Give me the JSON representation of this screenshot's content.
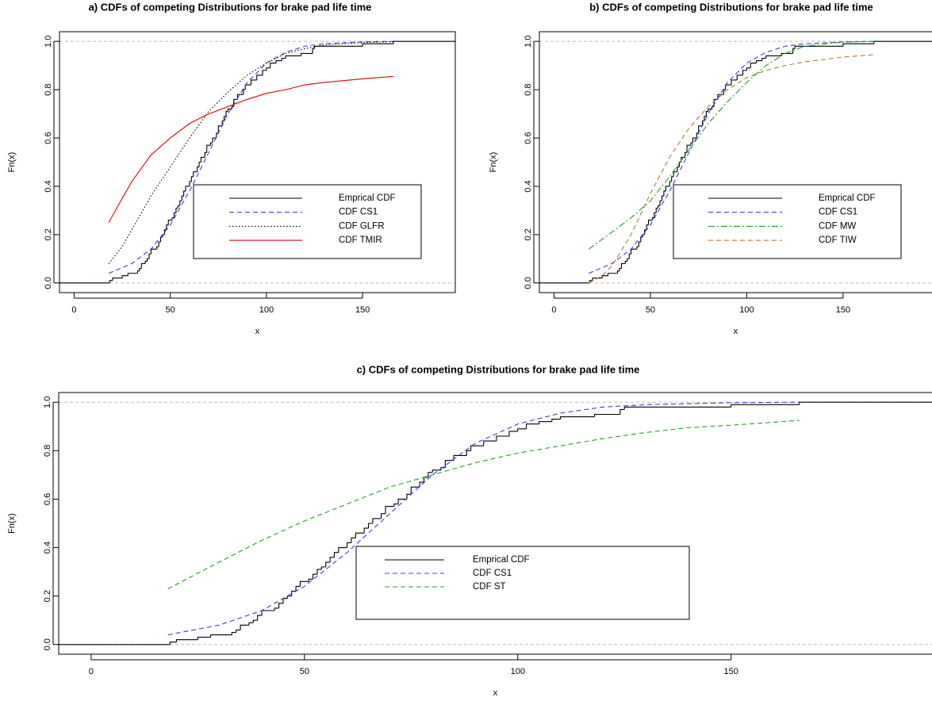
{
  "chart_data": [
    {
      "type": "line",
      "title": "a) CDFs of competing Distributions for brake pad life time",
      "xlabel": "x",
      "ylabel": "Fn(x)",
      "xlim": [
        -7.6,
        198.2
      ],
      "ylim": [
        -0.04,
        1.04
      ],
      "xticks": [
        0,
        50,
        100,
        150
      ],
      "yticks": [
        {
          "value": 0,
          "label": "0.0"
        },
        0.2,
        0.4,
        0.6,
        0.8,
        {
          "value": 1,
          "label": "1.0"
        }
      ],
      "reference_lines": [
        0,
        1
      ],
      "series": [
        {
          "name": "Emprical CDF",
          "color": "#000000",
          "dash": "solid",
          "step": true,
          "x": [
            18.5,
            20,
            25,
            28,
            33,
            34,
            35,
            37,
            38,
            39,
            40,
            43,
            44,
            45,
            46,
            47,
            48,
            49,
            51,
            52,
            53,
            54,
            55,
            56,
            57,
            58,
            60,
            61,
            62,
            64,
            65,
            66,
            68,
            69,
            71,
            72,
            74,
            75,
            77,
            78,
            79,
            80,
            82,
            83,
            85,
            88,
            89,
            92,
            95,
            98,
            100,
            102,
            105,
            108,
            110,
            118,
            124,
            125,
            150,
            166
          ],
          "values": [
            0.01,
            0.02,
            0.03,
            0.04,
            0.05,
            0.06,
            0.08,
            0.09,
            0.1,
            0.12,
            0.14,
            0.15,
            0.17,
            0.19,
            0.2,
            0.22,
            0.24,
            0.26,
            0.27,
            0.29,
            0.31,
            0.32,
            0.34,
            0.36,
            0.38,
            0.4,
            0.42,
            0.44,
            0.46,
            0.48,
            0.5,
            0.52,
            0.54,
            0.57,
            0.58,
            0.6,
            0.62,
            0.65,
            0.67,
            0.69,
            0.71,
            0.72,
            0.73,
            0.76,
            0.78,
            0.8,
            0.82,
            0.84,
            0.86,
            0.88,
            0.89,
            0.91,
            0.92,
            0.93,
            0.94,
            0.95,
            0.97,
            0.98,
            0.99,
            1.0
          ]
        },
        {
          "name": "CDF CS1",
          "color": "#3b3bd9",
          "dash": "dashed",
          "x": [
            18,
            30,
            40,
            50,
            60,
            70,
            80,
            90,
            100,
            110,
            120,
            130,
            150,
            166
          ],
          "values": [
            0.04,
            0.08,
            0.14,
            0.24,
            0.38,
            0.54,
            0.7,
            0.83,
            0.91,
            0.955,
            0.98,
            0.99,
            0.998,
            1.0
          ]
        },
        {
          "name": "CDF GLFR",
          "color": "#000000",
          "dash": "dotted",
          "x": [
            18,
            25,
            30,
            40,
            50,
            60,
            70,
            80,
            90,
            100,
            110,
            120,
            130,
            150,
            166
          ],
          "values": [
            0.08,
            0.15,
            0.22,
            0.36,
            0.48,
            0.6,
            0.71,
            0.79,
            0.86,
            0.91,
            0.95,
            0.97,
            0.985,
            0.995,
            0.999
          ]
        },
        {
          "name": "CDF TMIR",
          "color": "#e00000",
          "dash": "solid",
          "x": [
            18,
            25,
            30,
            40,
            50,
            60,
            70,
            80,
            90,
            100,
            110,
            120,
            130,
            150,
            166
          ],
          "values": [
            0.25,
            0.35,
            0.42,
            0.53,
            0.6,
            0.66,
            0.7,
            0.73,
            0.76,
            0.785,
            0.8,
            0.82,
            0.83,
            0.845,
            0.855
          ]
        }
      ]
    },
    {
      "type": "line",
      "title": "b) CDFs of competing Distributions for brake pad life time",
      "xlabel": "x",
      "ylabel": "Fn(x)",
      "xlim": [
        -7.6,
        198.2
      ],
      "ylim": [
        -0.04,
        1.04
      ],
      "xticks": [
        0,
        50,
        100,
        150
      ],
      "yticks": [
        {
          "value": 0,
          "label": "0.0"
        },
        0.2,
        0.4,
        0.6,
        0.8,
        {
          "value": 1,
          "label": "1.0"
        }
      ],
      "reference_lines": [
        0,
        1
      ],
      "series": [
        {
          "name": "Emprical CDF",
          "color": "#000000",
          "dash": "solid",
          "step": true,
          "x": [
            18.5,
            20,
            25,
            28,
            33,
            34,
            35,
            37,
            38,
            39,
            40,
            43,
            44,
            45,
            46,
            47,
            48,
            49,
            51,
            52,
            53,
            54,
            55,
            56,
            57,
            58,
            60,
            61,
            62,
            64,
            65,
            66,
            68,
            69,
            71,
            72,
            74,
            75,
            77,
            78,
            79,
            80,
            82,
            83,
            85,
            88,
            89,
            92,
            95,
            98,
            100,
            102,
            105,
            108,
            110,
            118,
            124,
            125,
            150,
            166
          ],
          "values": [
            0.01,
            0.02,
            0.03,
            0.04,
            0.05,
            0.06,
            0.08,
            0.09,
            0.1,
            0.12,
            0.14,
            0.15,
            0.17,
            0.19,
            0.2,
            0.22,
            0.24,
            0.26,
            0.27,
            0.29,
            0.31,
            0.32,
            0.34,
            0.36,
            0.38,
            0.4,
            0.42,
            0.44,
            0.46,
            0.48,
            0.5,
            0.52,
            0.54,
            0.57,
            0.58,
            0.6,
            0.62,
            0.65,
            0.67,
            0.69,
            0.71,
            0.72,
            0.73,
            0.76,
            0.78,
            0.8,
            0.82,
            0.84,
            0.86,
            0.88,
            0.89,
            0.91,
            0.92,
            0.93,
            0.94,
            0.95,
            0.97,
            0.98,
            0.99,
            1.0
          ]
        },
        {
          "name": "CDF CS1",
          "color": "#3b3bd9",
          "dash": "dashed",
          "x": [
            18,
            30,
            40,
            50,
            60,
            70,
            80,
            90,
            100,
            110,
            120,
            130,
            150,
            166
          ],
          "values": [
            0.04,
            0.08,
            0.14,
            0.24,
            0.38,
            0.54,
            0.7,
            0.83,
            0.91,
            0.955,
            0.98,
            0.99,
            0.998,
            1.0
          ]
        },
        {
          "name": "CDF MW",
          "color": "#22a022",
          "dash": "dotdash",
          "x": [
            18,
            30,
            40,
            50,
            60,
            70,
            80,
            90,
            100,
            110,
            120,
            130,
            150,
            166
          ],
          "values": [
            0.14,
            0.21,
            0.27,
            0.34,
            0.44,
            0.55,
            0.66,
            0.75,
            0.83,
            0.9,
            0.95,
            0.98,
            0.997,
            1.0
          ]
        },
        {
          "name": "CDF TIW",
          "color": "#b8733a",
          "dash": "dashed",
          "x": [
            18,
            25,
            30,
            40,
            50,
            60,
            70,
            80,
            90,
            100,
            110,
            120,
            130,
            150,
            166
          ],
          "values": [
            0.0,
            0.03,
            0.07,
            0.2,
            0.37,
            0.52,
            0.64,
            0.73,
            0.8,
            0.85,
            0.88,
            0.9,
            0.915,
            0.935,
            0.945
          ]
        }
      ]
    },
    {
      "type": "line",
      "title": "c) CDFs of competing Distributions for brake pad life time",
      "xlabel": "x",
      "ylabel": "Fn(x)",
      "xlim": [
        -7.6,
        198.2
      ],
      "ylim": [
        -0.04,
        1.04
      ],
      "xticks": [
        0,
        50,
        100,
        150
      ],
      "yticks": [
        {
          "value": 0,
          "label": "0.0"
        },
        0.2,
        0.4,
        0.6,
        0.8,
        {
          "value": 1,
          "label": "1.0"
        }
      ],
      "reference_lines": [
        0,
        1
      ],
      "series": [
        {
          "name": "Emprical CDF",
          "color": "#000000",
          "dash": "solid",
          "step": true,
          "x": [
            18.5,
            20,
            25,
            28,
            33,
            34,
            35,
            37,
            38,
            39,
            40,
            43,
            44,
            45,
            46,
            47,
            48,
            49,
            51,
            52,
            53,
            54,
            55,
            56,
            57,
            58,
            60,
            61,
            62,
            64,
            65,
            66,
            68,
            69,
            71,
            72,
            74,
            75,
            77,
            78,
            79,
            80,
            82,
            83,
            85,
            88,
            89,
            92,
            95,
            98,
            100,
            102,
            105,
            108,
            110,
            118,
            124,
            125,
            150,
            166
          ],
          "values": [
            0.01,
            0.02,
            0.03,
            0.04,
            0.05,
            0.06,
            0.08,
            0.09,
            0.1,
            0.12,
            0.14,
            0.15,
            0.17,
            0.19,
            0.2,
            0.22,
            0.24,
            0.26,
            0.27,
            0.29,
            0.31,
            0.32,
            0.34,
            0.36,
            0.38,
            0.4,
            0.42,
            0.44,
            0.46,
            0.48,
            0.5,
            0.52,
            0.54,
            0.57,
            0.58,
            0.6,
            0.62,
            0.65,
            0.67,
            0.69,
            0.71,
            0.72,
            0.73,
            0.76,
            0.78,
            0.8,
            0.82,
            0.84,
            0.86,
            0.88,
            0.89,
            0.91,
            0.92,
            0.93,
            0.94,
            0.95,
            0.97,
            0.98,
            0.99,
            1.0
          ]
        },
        {
          "name": "CDF CS1",
          "color": "#3b3bd9",
          "dash": "dashed",
          "x": [
            18,
            30,
            40,
            50,
            60,
            70,
            80,
            90,
            100,
            110,
            120,
            130,
            150,
            166
          ],
          "values": [
            0.04,
            0.08,
            0.14,
            0.24,
            0.38,
            0.54,
            0.7,
            0.83,
            0.91,
            0.955,
            0.98,
            0.99,
            0.998,
            1.0
          ]
        },
        {
          "name": "CDF ST",
          "color": "#22a022",
          "dash": "dashed",
          "x": [
            18,
            30,
            40,
            50,
            60,
            70,
            80,
            90,
            100,
            110,
            120,
            130,
            140,
            150,
            166
          ],
          "values": [
            0.23,
            0.34,
            0.43,
            0.51,
            0.58,
            0.65,
            0.7,
            0.75,
            0.79,
            0.82,
            0.85,
            0.875,
            0.895,
            0.905,
            0.925
          ]
        }
      ]
    }
  ]
}
